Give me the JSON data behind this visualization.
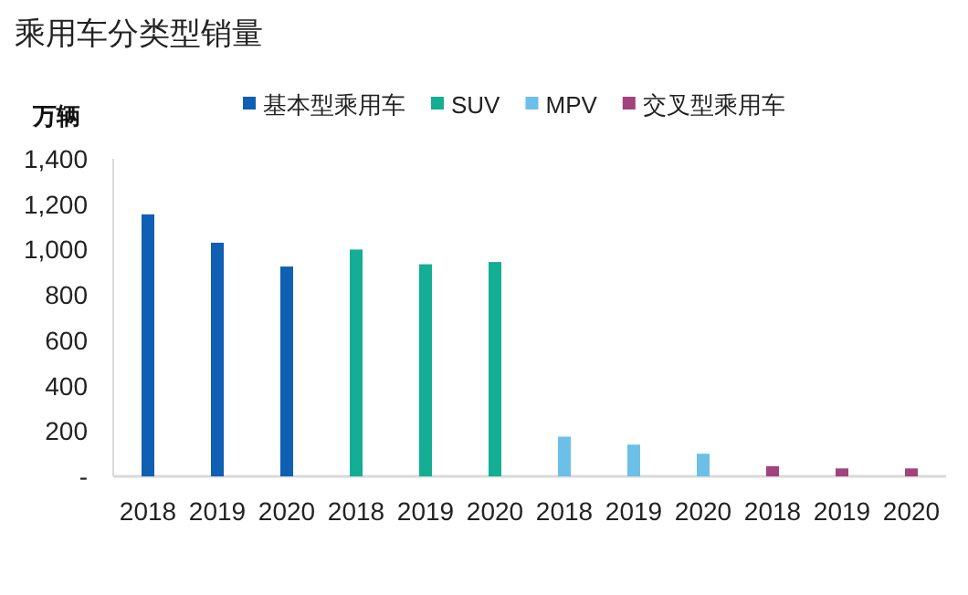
{
  "chart_data": {
    "type": "bar",
    "title": "乘用车分类型销量",
    "ylabel": "万辆",
    "categories": [
      "2018",
      "2019",
      "2020",
      "2018",
      "2019",
      "2020",
      "2018",
      "2019",
      "2020",
      "2018",
      "2019",
      "2020"
    ],
    "series": [
      {
        "name": "基本型乘用车",
        "color": "#0f5fb4",
        "values": [
          1155,
          1030,
          925,
          null,
          null,
          null,
          null,
          null,
          null,
          null,
          null,
          null
        ]
      },
      {
        "name": "SUV",
        "color": "#13ae94",
        "values": [
          null,
          null,
          null,
          1000,
          935,
          945,
          null,
          null,
          null,
          null,
          null,
          null
        ]
      },
      {
        "name": "MPV",
        "color": "#6cc0e8",
        "values": [
          null,
          null,
          null,
          null,
          null,
          null,
          175,
          140,
          100,
          null,
          null,
          null
        ]
      },
      {
        "name": "交叉型乘用车",
        "color": "#a2427e",
        "values": [
          null,
          null,
          null,
          null,
          null,
          null,
          null,
          null,
          null,
          45,
          35,
          35
        ]
      }
    ],
    "ylim": [
      0,
      1400
    ],
    "yticks": [
      {
        "value": 0,
        "label": "-"
      },
      200,
      400,
      600,
      800,
      {
        "value": 1000,
        "label": "1,000"
      },
      {
        "value": 1200,
        "label": "1,200"
      },
      {
        "value": 1400,
        "label": "1,400"
      }
    ],
    "grid": false,
    "legend": "top"
  }
}
